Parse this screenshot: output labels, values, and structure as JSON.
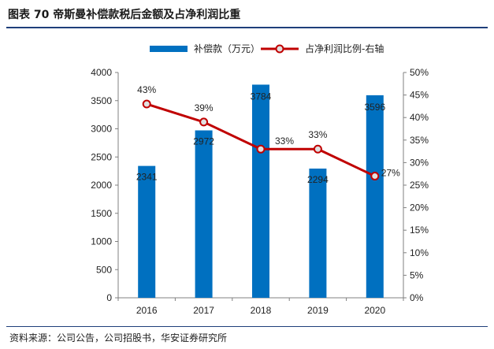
{
  "header": {
    "title": "图表 70 帝斯曼补偿款税后金额及占净利润比重"
  },
  "footer": {
    "source": "资料来源：公司公告，公司招股书，华安证券研究所"
  },
  "colors": {
    "bar": "#0070c0",
    "line": "#c00000",
    "marker_fill": "#e0e0e0",
    "axis": "#808080"
  },
  "chart_data": {
    "type": "bar",
    "categories": [
      "2016",
      "2017",
      "2018",
      "2019",
      "2020"
    ],
    "series": [
      {
        "name": "补偿款（万元）",
        "type": "bar",
        "axis": "left",
        "values": [
          2341,
          2972,
          3784,
          2294,
          3596
        ],
        "labels": [
          "2341",
          "2972",
          "3784",
          "2294",
          "3596"
        ]
      },
      {
        "name": "占净利润比例-右轴",
        "type": "line",
        "axis": "right",
        "values": [
          43,
          39,
          33,
          33,
          27
        ],
        "labels": [
          "43%",
          "39%",
          "33%",
          "33%",
          "27%"
        ]
      }
    ],
    "y_left": {
      "lim": [
        0,
        4000
      ],
      "ticks": [
        "0",
        "500",
        "1000",
        "1500",
        "2000",
        "2500",
        "3000",
        "3500",
        "4000"
      ]
    },
    "y_right": {
      "lim": [
        0,
        50
      ],
      "ticks": [
        "0%",
        "5%",
        "10%",
        "15%",
        "20%",
        "25%",
        "30%",
        "35%",
        "40%",
        "45%",
        "50%"
      ]
    },
    "legend": "top-center",
    "grid": false
  }
}
